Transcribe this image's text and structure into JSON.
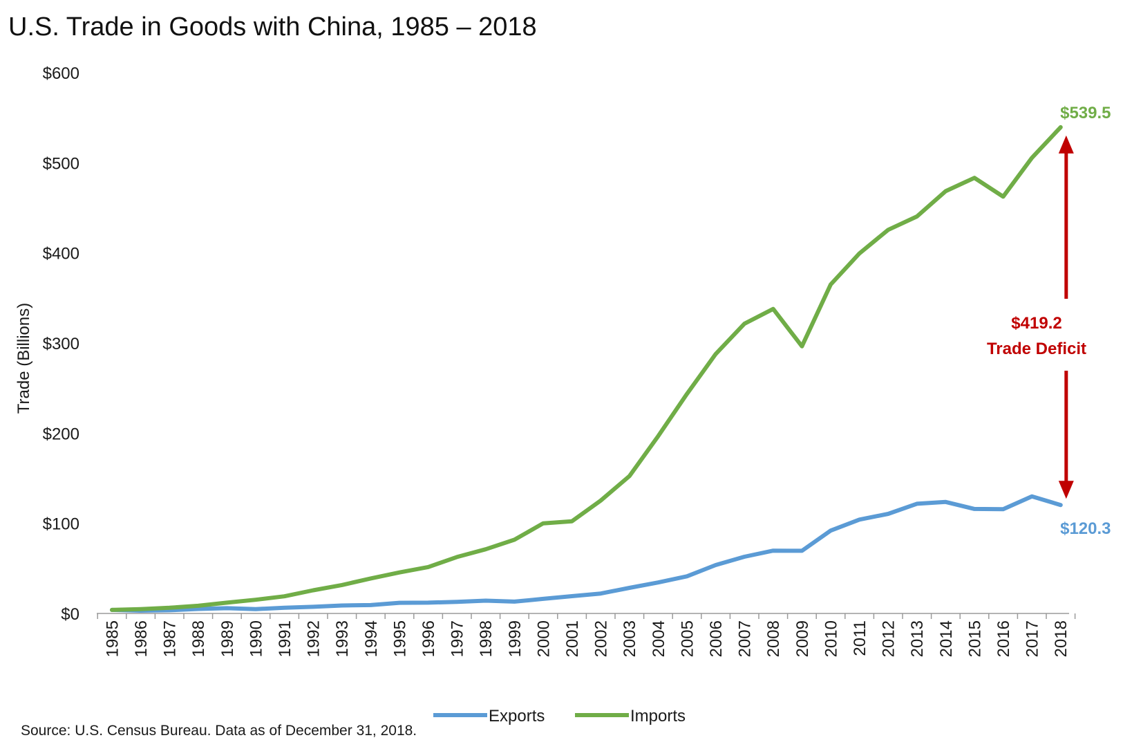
{
  "chart_data": {
    "type": "line",
    "title": "U.S. Trade in Goods with China, 1985 – 2018",
    "xlabel": "",
    "ylabel": "Trade (Billions)",
    "ylim": [
      0,
      600
    ],
    "y_ticks": [
      "$0",
      "$100",
      "$200",
      "$300",
      "$400",
      "$500",
      "$600"
    ],
    "grid": false,
    "legend_position": "bottom",
    "categories": [
      "1985",
      "1986",
      "1987",
      "1988",
      "1989",
      "1990",
      "1991",
      "1992",
      "1993",
      "1994",
      "1995",
      "1996",
      "1997",
      "1998",
      "1999",
      "2000",
      "2001",
      "2002",
      "2003",
      "2004",
      "2005",
      "2006",
      "2007",
      "2008",
      "2009",
      "2010",
      "2011",
      "2012",
      "2013",
      "2014",
      "2015",
      "2016",
      "2017",
      "2018"
    ],
    "series": [
      {
        "name": "Exports",
        "color": "#5b9bd5",
        "values": [
          3.9,
          3.1,
          3.5,
          5.0,
          5.8,
          4.8,
          6.3,
          7.4,
          8.8,
          9.3,
          11.8,
          12.0,
          12.9,
          14.2,
          13.1,
          16.2,
          19.2,
          22.1,
          28.4,
          34.4,
          41.2,
          53.7,
          62.9,
          69.7,
          69.5,
          91.9,
          104.1,
          110.5,
          121.7,
          123.7,
          115.9,
          115.6,
          129.8,
          120.3
        ]
      },
      {
        "name": "Imports",
        "color": "#70ad47",
        "values": [
          3.9,
          4.8,
          6.3,
          8.5,
          12.0,
          15.2,
          19.0,
          25.7,
          31.5,
          38.8,
          45.5,
          51.5,
          62.6,
          71.2,
          81.8,
          100.0,
          102.3,
          125.2,
          152.4,
          196.7,
          243.5,
          287.8,
          321.4,
          337.8,
          296.4,
          364.9,
          399.4,
          425.6,
          440.4,
          468.5,
          483.2,
          462.4,
          505.5,
          539.5
        ]
      }
    ],
    "annotations": {
      "imports_end_label": "$539.5",
      "exports_end_label": "$120.3",
      "deficit_value": "$419.2",
      "deficit_label": "Trade Deficit",
      "arrow_color": "#c00000"
    }
  },
  "source": "Source: U.S. Census Bureau. Data as of December 31, 2018."
}
